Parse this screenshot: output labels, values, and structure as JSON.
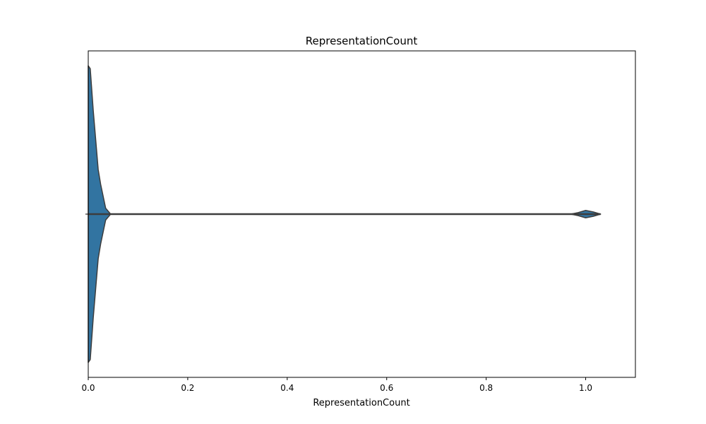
{
  "chart_data": {
    "type": "violin",
    "title": "RepresentationCount",
    "xlabel": "RepresentationCount",
    "ylabel": "",
    "orientation": "horizontal",
    "xlim": [
      0,
      1.1
    ],
    "xticks": [
      0.0,
      0.2,
      0.4,
      0.6,
      0.8,
      1.0
    ],
    "xtick_labels": [
      "0.0",
      "0.2",
      "0.4",
      "0.6",
      "0.8",
      "1.0"
    ],
    "grid": false,
    "legend": "none",
    "data_range": [
      0,
      1.03
    ],
    "density_profile": [
      {
        "x": 0.0,
        "density": 1.0
      },
      {
        "x": 0.004,
        "density": 0.98
      },
      {
        "x": 0.01,
        "density": 0.7
      },
      {
        "x": 0.015,
        "density": 0.5
      },
      {
        "x": 0.02,
        "density": 0.3
      },
      {
        "x": 0.025,
        "density": 0.2
      },
      {
        "x": 0.035,
        "density": 0.04
      },
      {
        "x": 0.045,
        "density": 0.0
      },
      {
        "x": 0.97,
        "density": 0.0
      },
      {
        "x": 0.985,
        "density": 0.01
      },
      {
        "x": 1.0,
        "density": 0.025
      },
      {
        "x": 1.015,
        "density": 0.015
      },
      {
        "x": 1.03,
        "density": 0.0
      }
    ],
    "colors": {
      "fill": "#3274a1",
      "outline": "#3d3d3d"
    }
  }
}
